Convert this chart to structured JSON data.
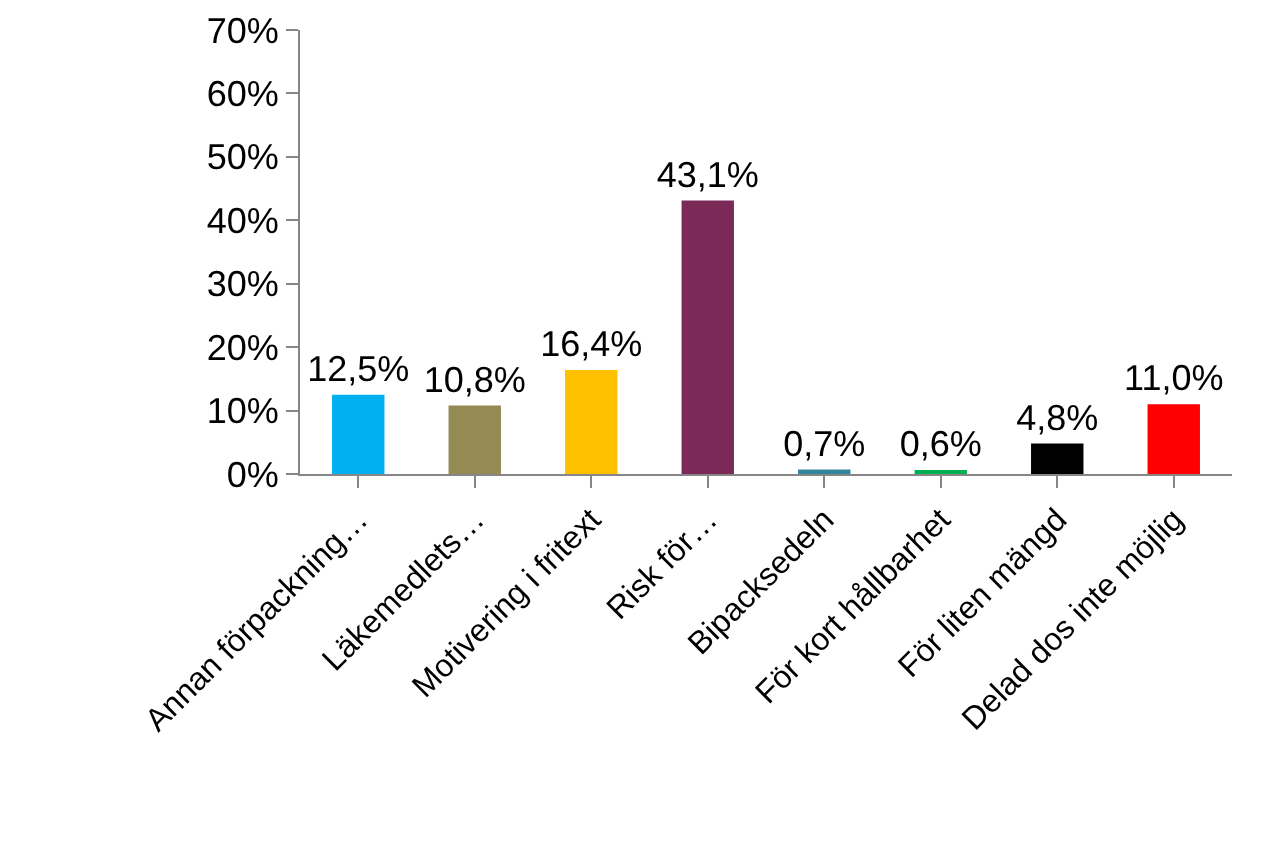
{
  "chart_data": {
    "type": "bar",
    "categories": [
      "Annan förpackning…",
      "Läkemedlets…",
      "Motivering i fritext",
      "Risk för…",
      "Bipacksedeln",
      "För kort hållbarhet",
      "För liten mängd",
      "Delad dos inte möjlig"
    ],
    "values": [
      12.5,
      10.8,
      16.4,
      43.1,
      0.7,
      0.6,
      4.8,
      11.0
    ],
    "colors": [
      "#00b0f0",
      "#948a54",
      "#ffc000",
      "#7b2a58",
      "#31859c",
      "#00b050",
      "#000000",
      "#ff0000"
    ],
    "value_labels": [
      "12,5%",
      "10,8%",
      "16,4%",
      "43,1%",
      "0,7%",
      "0,6%",
      "4,8%",
      "11,0%"
    ],
    "ylim": [
      0,
      70
    ],
    "yticks": [
      {
        "value": 0,
        "label": "0%"
      },
      {
        "value": 10,
        "label": "10%"
      },
      {
        "value": 20,
        "label": "20%"
      },
      {
        "value": 30,
        "label": "30%"
      },
      {
        "value": 40,
        "label": "40%"
      },
      {
        "value": 50,
        "label": "50%"
      },
      {
        "value": 60,
        "label": "60%"
      },
      {
        "value": 70,
        "label": "70%"
      }
    ],
    "legend": false
  }
}
